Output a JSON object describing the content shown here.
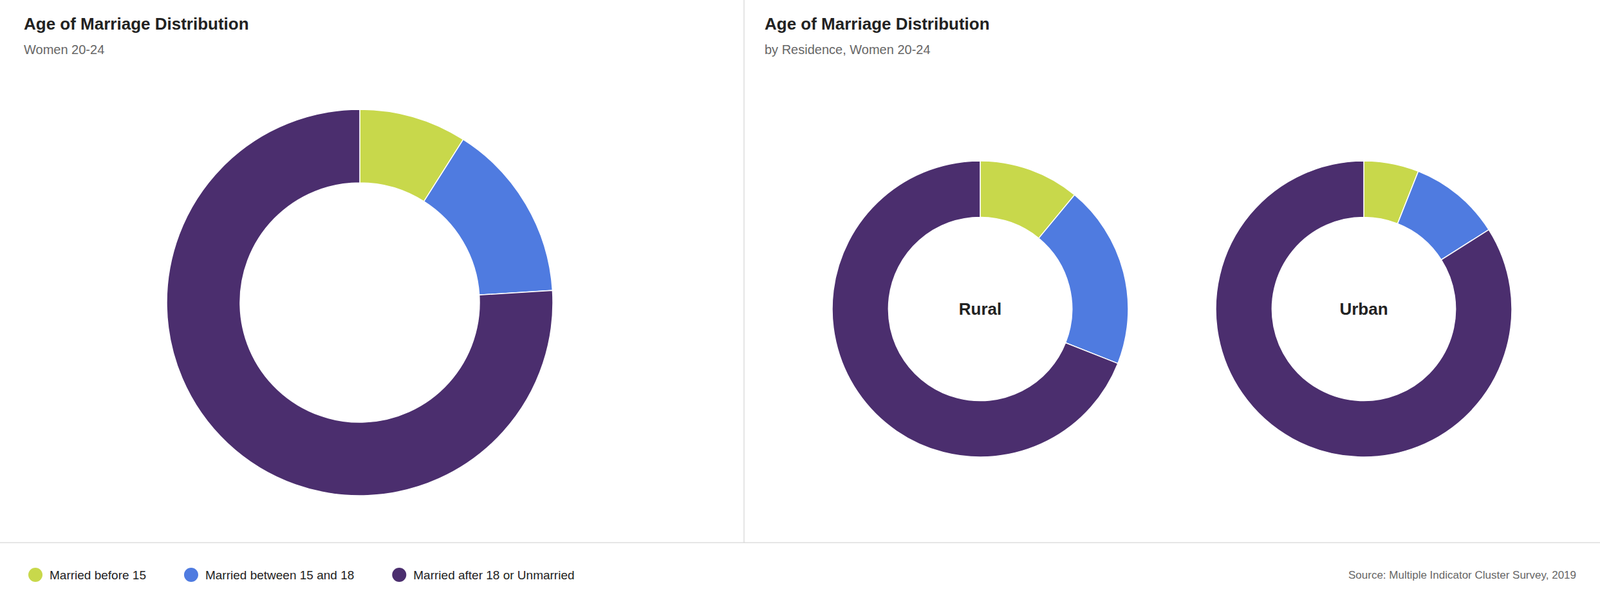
{
  "chart_data": [
    {
      "type": "pie",
      "title": "Age of Marriage Distribution",
      "subtitle": "Women 20-24",
      "categories": [
        "Married before 15",
        "Married between 15 and 18",
        "Married after 18 or Unmarried"
      ],
      "values": [
        9,
        15,
        76
      ],
      "colors": [
        "#c8d84b",
        "#4f7be0",
        "#4b2e6e"
      ],
      "legend": "bottom",
      "annotations": [
        "Source: Multiple Indicator Cluster Survey, 2019"
      ]
    },
    {
      "type": "pie",
      "title": "Age of Marriage Distribution",
      "subtitle": "by Residence, Women 20-24",
      "values": [
        11,
        20,
        69
      ],
      "colors": [
        "#c8d84b",
        "#4f7be0",
        "#4b2e6e"
      ],
      "annotations": [
        "Rural"
      ]
    },
    {
      "type": "pie",
      "values": [
        6,
        10,
        84
      ],
      "colors": [
        "#c8d84b",
        "#4f7be0",
        "#4b2e6e"
      ],
      "annotations": [
        "Urban"
      ]
    }
  ]
}
